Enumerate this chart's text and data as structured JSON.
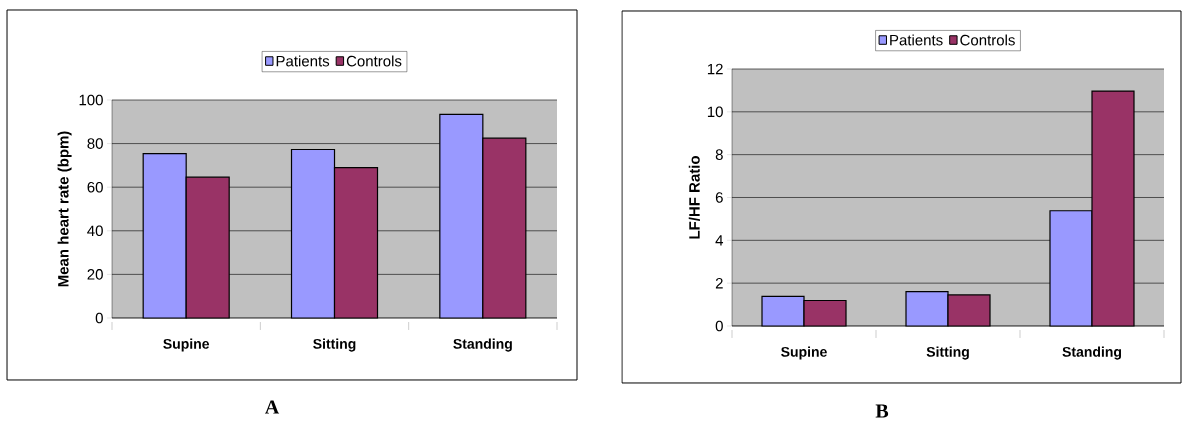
{
  "chart_data": [
    {
      "type": "bar",
      "categories": [
        "Supine",
        "Sitting",
        "Standing"
      ],
      "ylabel": "Mean heart rate (bpm)",
      "ylim": [
        0,
        100
      ],
      "yticks": [
        0,
        20,
        40,
        60,
        80,
        100
      ],
      "grid": "y",
      "legend": "top",
      "annotations": [
        "A"
      ],
      "series": [
        {
          "name": "Patients",
          "color": "#9999ff",
          "values": [
            75.4,
            77.3,
            93.4
          ]
        },
        {
          "name": "Controls",
          "color": "#993366",
          "values": [
            64.6,
            69.0,
            82.5
          ]
        }
      ]
    },
    {
      "type": "bar",
      "categories": [
        "Supine",
        "Sitting",
        "Standing"
      ],
      "ylabel": "LF/HF Ratio",
      "ylim": [
        0,
        12
      ],
      "yticks": [
        0,
        2,
        4,
        6,
        8,
        10,
        12
      ],
      "grid": "y",
      "legend": "top",
      "annotations": [
        "B"
      ],
      "series": [
        {
          "name": "Patients",
          "color": "#9999ff",
          "values": [
            1.38,
            1.6,
            5.38
          ]
        },
        {
          "name": "Controls",
          "color": "#993366",
          "values": [
            1.19,
            1.45,
            10.97
          ]
        }
      ]
    }
  ]
}
